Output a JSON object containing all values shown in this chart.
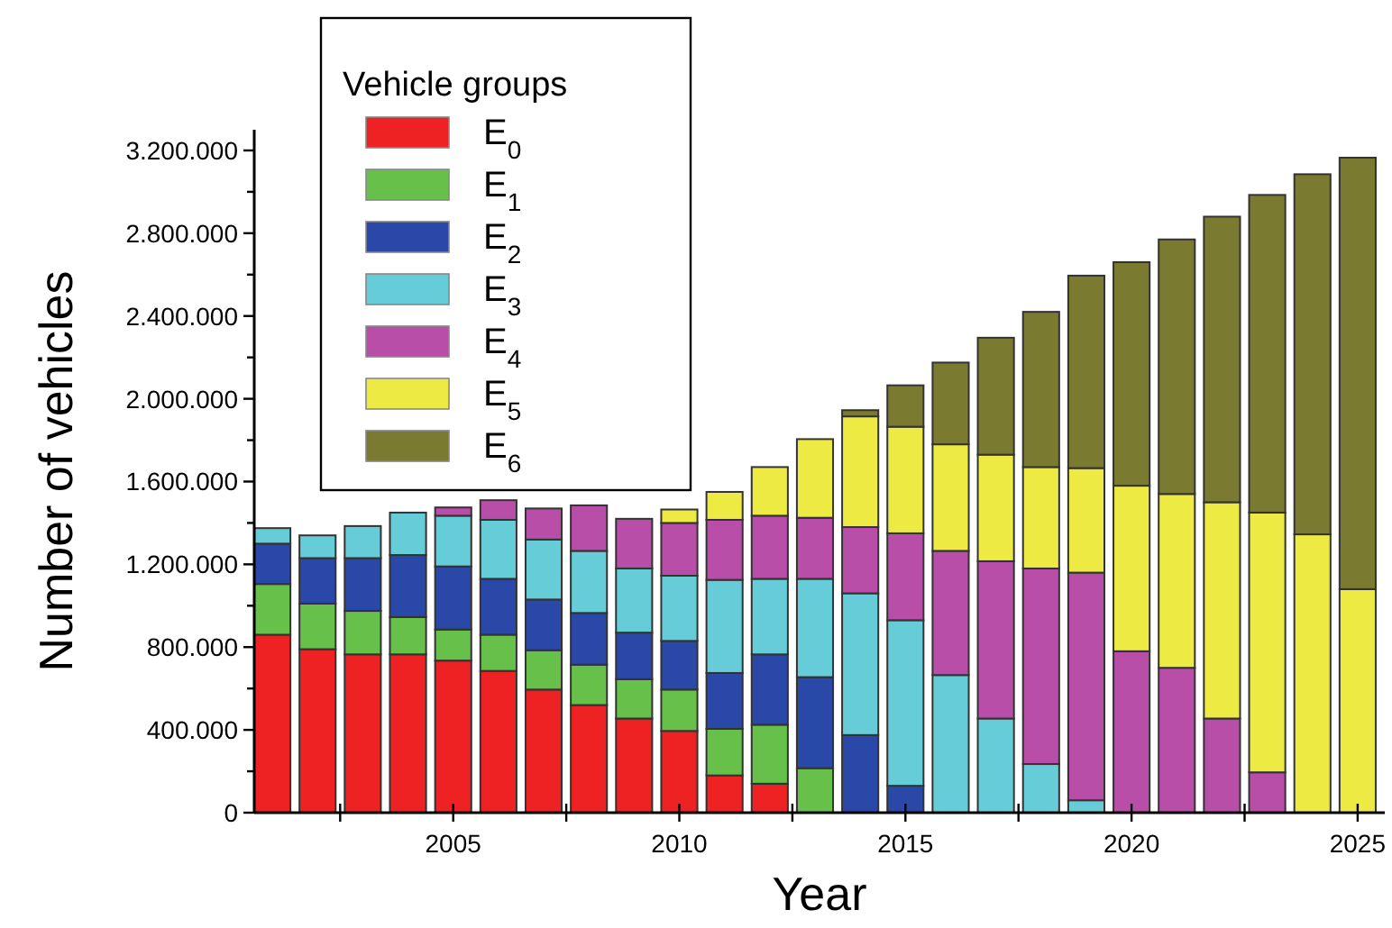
{
  "chart_data": {
    "type": "bar",
    "stacked": true,
    "xlabel": "Year",
    "ylabel": "Number of vehicles",
    "legend_title": "Vehicle groups",
    "legend": "top left",
    "x": [
      2001,
      2002,
      2003,
      2004,
      2005,
      2006,
      2007,
      2008,
      2009,
      2010,
      2011,
      2012,
      2013,
      2014,
      2015,
      2016,
      2017,
      2018,
      2019,
      2020,
      2021,
      2022,
      2023,
      2024,
      2025
    ],
    "xlim": [
      2000.6,
      2025.6
    ],
    "xticks": [
      {
        "value": 2002.5,
        "label": null
      },
      2005,
      {
        "value": 2007.5,
        "label": null
      },
      2010,
      {
        "value": 2012.5,
        "label": null
      },
      2015,
      {
        "value": 2017.5,
        "label": null
      },
      2020,
      {
        "value": 2022.5,
        "label": null
      },
      2025
    ],
    "ylim": [
      0,
      3300000
    ],
    "yticks": [
      {
        "value": 0,
        "label": "0"
      },
      {
        "value": 200000,
        "label": null
      },
      {
        "value": 400000,
        "label": "400.000"
      },
      {
        "value": 600000,
        "label": null
      },
      {
        "value": 800000,
        "label": "800.000"
      },
      {
        "value": 1000000,
        "label": null
      },
      {
        "value": 1200000,
        "label": "1.200.000"
      },
      {
        "value": 1400000,
        "label": null
      },
      {
        "value": 1600000,
        "label": "1.600.000"
      },
      {
        "value": 1800000,
        "label": null
      },
      {
        "value": 2000000,
        "label": "2.000.000"
      },
      {
        "value": 2200000,
        "label": null
      },
      {
        "value": 2400000,
        "label": "2.400.000"
      },
      {
        "value": 2600000,
        "label": null
      },
      {
        "value": 2800000,
        "label": "2.800.000"
      },
      {
        "value": 3000000,
        "label": null
      },
      {
        "value": 3200000,
        "label": "3.200.000"
      }
    ],
    "series": [
      {
        "name": "E$_{0}$",
        "color": "#ee2222",
        "values": [
          860000,
          790000,
          765000,
          765000,
          735000,
          685000,
          595000,
          520000,
          455000,
          395000,
          180000,
          140000,
          null,
          null,
          null,
          null,
          null,
          null,
          null,
          null,
          null,
          null,
          null,
          null,
          null
        ]
      },
      {
        "name": "E$_{1}$",
        "color": "#66c04a",
        "values": [
          245000,
          220000,
          210000,
          180000,
          150000,
          175000,
          190000,
          195000,
          190000,
          200000,
          225000,
          285000,
          215000,
          null,
          null,
          null,
          null,
          null,
          null,
          null,
          null,
          null,
          null,
          null,
          null
        ]
      },
      {
        "name": "E$_{2}$",
        "color": "#2a48a8",
        "values": [
          195000,
          220000,
          255000,
          300000,
          305000,
          270000,
          245000,
          250000,
          225000,
          235000,
          270000,
          340000,
          440000,
          375000,
          130000,
          null,
          null,
          null,
          null,
          null,
          null,
          null,
          null,
          null,
          null
        ]
      },
      {
        "name": "E$_{3}$",
        "color": "#66ccd8",
        "values": [
          75000,
          110000,
          155000,
          205000,
          245000,
          285000,
          290000,
          300000,
          310000,
          315000,
          450000,
          365000,
          475000,
          685000,
          800000,
          665000,
          455000,
          235000,
          60000,
          null,
          null,
          null,
          null,
          null,
          null
        ]
      },
      {
        "name": "E$_{4}$",
        "color": "#b84ea8",
        "values": [
          null,
          null,
          null,
          null,
          40000,
          95000,
          150000,
          220000,
          240000,
          255000,
          290000,
          305000,
          295000,
          320000,
          420000,
          600000,
          760000,
          945000,
          1100000,
          780000,
          700000,
          455000,
          195000,
          null,
          null
        ]
      },
      {
        "name": "E$_{5}$",
        "color": "#eeea44",
        "values": [
          null,
          null,
          null,
          null,
          null,
          null,
          null,
          null,
          null,
          65000,
          135000,
          235000,
          380000,
          535000,
          515000,
          515000,
          515000,
          490000,
          505000,
          800000,
          840000,
          1045000,
          1255000,
          1345000,
          1080000
        ]
      },
      {
        "name": "E$_{6}$",
        "color": "#7a7a30",
        "values": [
          null,
          null,
          null,
          null,
          null,
          null,
          null,
          null,
          null,
          null,
          null,
          null,
          null,
          30000,
          200000,
          395000,
          565000,
          750000,
          930000,
          1080000,
          1230000,
          1380000,
          1535000,
          1740000,
          2085000
        ]
      }
    ]
  }
}
